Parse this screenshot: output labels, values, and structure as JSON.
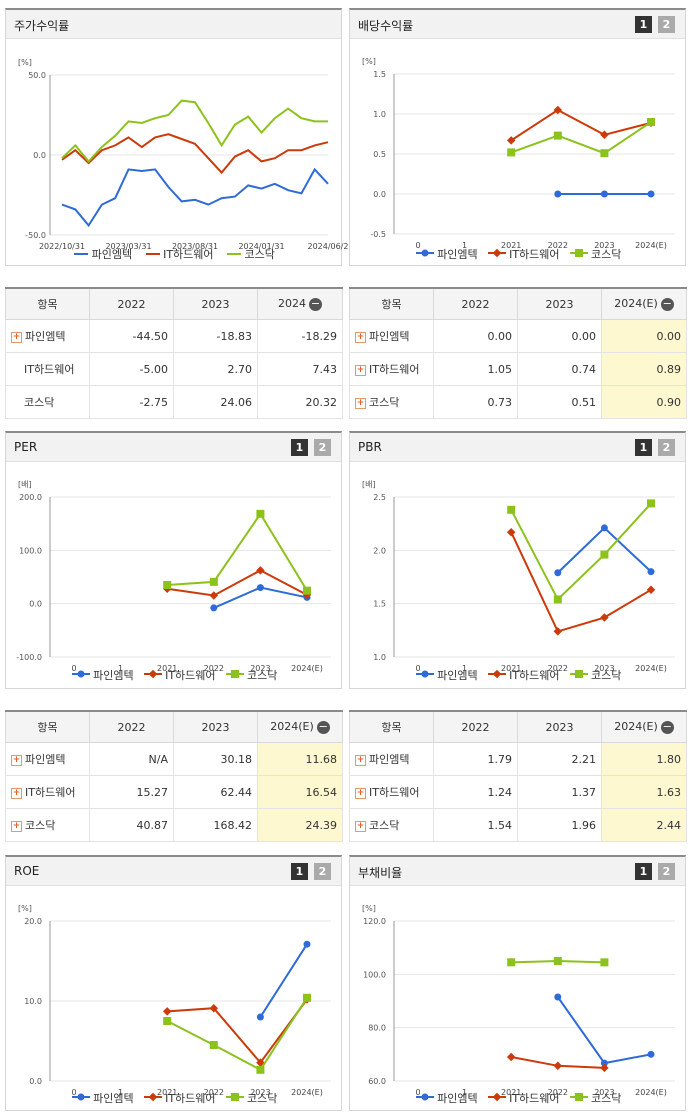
{
  "colors": {
    "s1": "#2e6bd6",
    "s2": "#cc3a0a",
    "s3": "#8cc21c"
  },
  "legend": [
    "파인엠텍",
    "IT하드웨어",
    "코스닥"
  ],
  "price": {
    "title": "주가수익률",
    "chart_data": {
      "type": "line",
      "unit": "[%]",
      "ylim": [
        -50,
        50
      ],
      "yticks": [
        "50.0",
        "0.0",
        "-50.0"
      ],
      "xticks": [
        "2022/10/31",
        "2023/03/31",
        "2023/08/31",
        "2024/01/31",
        "2024/06/2"
      ],
      "series": [
        {
          "name": "파인엠텍",
          "values": [
            -31,
            -34,
            -44,
            -31,
            -27,
            -9,
            -10,
            -9,
            -20,
            -29,
            -28,
            -31,
            -27,
            -26,
            -19,
            -21,
            -18,
            -22,
            -24,
            -9,
            -18
          ]
        },
        {
          "name": "IT하드웨어",
          "values": [
            -3,
            3,
            -5,
            3,
            6,
            11,
            5,
            11,
            13,
            10,
            7,
            -2,
            -11,
            -1,
            3,
            -4,
            -2,
            3,
            3,
            6,
            8
          ]
        },
        {
          "name": "코스닥",
          "values": [
            -2,
            6,
            -4,
            5,
            12,
            21,
            20,
            23,
            25,
            34,
            33,
            20,
            6,
            19,
            24,
            14,
            23,
            29,
            23,
            21,
            21
          ]
        }
      ]
    },
    "table": {
      "headers": [
        "항목",
        "2022",
        "2023",
        "2024"
      ],
      "rows": [
        {
          "name": "파인엠텍",
          "v": [
            "-44.50",
            "-18.83",
            "-18.29"
          ]
        },
        {
          "name": "IT하드웨어",
          "v": [
            "-5.00",
            "2.70",
            "7.43"
          ]
        },
        {
          "name": "코스닥",
          "v": [
            "-2.75",
            "24.06",
            "20.32"
          ]
        }
      ]
    }
  },
  "dividend": {
    "title": "배당수익률",
    "pages": [
      "1",
      "2"
    ],
    "chart_data": {
      "type": "line",
      "unit": "[%]",
      "categories": [
        "0",
        "1",
        "2021",
        "2022",
        "2023",
        "2024(E)"
      ],
      "ylim": [
        -0.5,
        1.5
      ],
      "yticks": [
        "1.5",
        "1.0",
        "0.5",
        "0.0",
        "-0.5"
      ],
      "series": [
        {
          "name": "파인엠텍",
          "values": [
            null,
            null,
            null,
            0.0,
            0.0,
            0.0
          ]
        },
        {
          "name": "IT하드웨어",
          "values": [
            null,
            null,
            0.67,
            1.05,
            0.74,
            0.89
          ]
        },
        {
          "name": "코스닥",
          "values": [
            null,
            null,
            0.52,
            0.73,
            0.51,
            0.9
          ]
        }
      ]
    },
    "table": {
      "headers": [
        "항목",
        "2022",
        "2023",
        "2024(E)"
      ],
      "rows": [
        {
          "name": "파인엠텍",
          "v": [
            "0.00",
            "0.00",
            "0.00"
          ]
        },
        {
          "name": "IT하드웨어",
          "v": [
            "1.05",
            "0.74",
            "0.89"
          ]
        },
        {
          "name": "코스닥",
          "v": [
            "0.73",
            "0.51",
            "0.90"
          ]
        }
      ]
    }
  },
  "per": {
    "title": "PER",
    "pages": [
      "1",
      "2"
    ],
    "chart_data": {
      "type": "line",
      "unit": "[배]",
      "categories": [
        "0",
        "1",
        "2021",
        "2022",
        "2023",
        "2024(E)"
      ],
      "ylim": [
        -100,
        200
      ],
      "yticks": [
        "200.0",
        "100.0",
        "0.0",
        "-100.0"
      ],
      "series": [
        {
          "name": "파인엠텍",
          "values": [
            null,
            null,
            null,
            -8,
            30.18,
            11.68
          ]
        },
        {
          "name": "IT하드웨어",
          "values": [
            null,
            null,
            28,
            15.27,
            62.44,
            16.54
          ]
        },
        {
          "name": "코스닥",
          "values": [
            null,
            null,
            35,
            40.87,
            168.42,
            24.39
          ]
        }
      ]
    },
    "table": {
      "headers": [
        "항목",
        "2022",
        "2023",
        "2024(E)"
      ],
      "rows": [
        {
          "name": "파인엠텍",
          "v": [
            "N/A",
            "30.18",
            "11.68"
          ]
        },
        {
          "name": "IT하드웨어",
          "v": [
            "15.27",
            "62.44",
            "16.54"
          ]
        },
        {
          "name": "코스닥",
          "v": [
            "40.87",
            "168.42",
            "24.39"
          ]
        }
      ]
    }
  },
  "pbr": {
    "title": "PBR",
    "pages": [
      "1",
      "2"
    ],
    "chart_data": {
      "type": "line",
      "unit": "[배]",
      "categories": [
        "0",
        "1",
        "2021",
        "2022",
        "2023",
        "2024(E)"
      ],
      "ylim": [
        1.0,
        2.5
      ],
      "yticks": [
        "2.5",
        "2.0",
        "1.5",
        "1.0"
      ],
      "series": [
        {
          "name": "파인엠텍",
          "values": [
            null,
            null,
            null,
            1.79,
            2.21,
            1.8
          ]
        },
        {
          "name": "IT하드웨어",
          "values": [
            null,
            null,
            2.17,
            1.24,
            1.37,
            1.63
          ]
        },
        {
          "name": "코스닥",
          "values": [
            null,
            null,
            2.38,
            1.54,
            1.96,
            2.44
          ]
        }
      ]
    },
    "table": {
      "headers": [
        "항목",
        "2022",
        "2023",
        "2024(E)"
      ],
      "rows": [
        {
          "name": "파인엠텍",
          "v": [
            "1.79",
            "2.21",
            "1.80"
          ]
        },
        {
          "name": "IT하드웨어",
          "v": [
            "1.24",
            "1.37",
            "1.63"
          ]
        },
        {
          "name": "코스닥",
          "v": [
            "1.54",
            "1.96",
            "2.44"
          ]
        }
      ]
    }
  },
  "roe": {
    "title": "ROE",
    "pages": [
      "1",
      "2"
    ],
    "chart_data": {
      "type": "line",
      "unit": "[%]",
      "categories": [
        "0",
        "1",
        "2021",
        "2022",
        "2023",
        "2024(E)"
      ],
      "ylim": [
        0,
        20
      ],
      "yticks": [
        "20.0",
        "10.0",
        "0.0"
      ],
      "series": [
        {
          "name": "파인엠텍",
          "values": [
            null,
            null,
            null,
            null,
            8.0,
            17.1
          ]
        },
        {
          "name": "IT하드웨어",
          "values": [
            null,
            null,
            8.7,
            9.1,
            2.3,
            10.2
          ]
        },
        {
          "name": "코스닥",
          "values": [
            null,
            null,
            7.5,
            4.5,
            1.4,
            10.4
          ]
        }
      ]
    }
  },
  "debt": {
    "title": "부채비율",
    "pages": [
      "1",
      "2"
    ],
    "chart_data": {
      "type": "line",
      "unit": "[%]",
      "categories": [
        "0",
        "1",
        "2021",
        "2022",
        "2023",
        "2024(E)"
      ],
      "ylim": [
        60,
        120
      ],
      "yticks": [
        "120.0",
        "100.0",
        "80.0",
        "60.0"
      ],
      "series": [
        {
          "name": "파인엠텍",
          "values": [
            null,
            null,
            null,
            91.5,
            66.7,
            70.0
          ]
        },
        {
          "name": "IT하드웨어",
          "values": [
            null,
            null,
            69.0,
            65.7,
            64.9,
            null
          ]
        },
        {
          "name": "코스닥",
          "values": [
            null,
            null,
            104.5,
            105.0,
            104.5,
            null
          ]
        }
      ]
    }
  }
}
